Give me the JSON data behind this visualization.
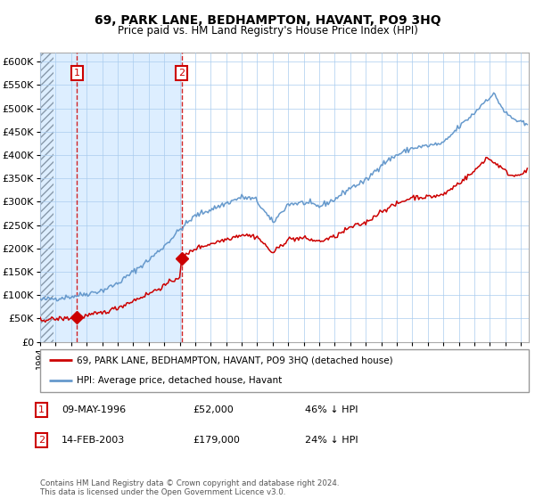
{
  "title": "69, PARK LANE, BEDHAMPTON, HAVANT, PO9 3HQ",
  "subtitle": "Price paid vs. HM Land Registry's House Price Index (HPI)",
  "sale1_date": "09-MAY-1996",
  "sale1_year": 1996.37,
  "sale1_price": 52000,
  "sale2_date": "14-FEB-2003",
  "sale2_year": 2003.12,
  "sale2_price": 179000,
  "sale1_pct": "46% ↓ HPI",
  "sale2_pct": "24% ↓ HPI",
  "legend_house": "69, PARK LANE, BEDHAMPTON, HAVANT, PO9 3HQ (detached house)",
  "legend_hpi": "HPI: Average price, detached house, Havant",
  "footer": "Contains HM Land Registry data © Crown copyright and database right 2024.\nThis data is licensed under the Open Government Licence v3.0.",
  "hpi_color": "#6699cc",
  "price_color": "#cc0000",
  "bg_shade_color": "#ddeeff",
  "grid_color": "#aaccee",
  "xlim_start": 1994.0,
  "xlim_end": 2025.5,
  "ylim_min": 0,
  "ylim_max": 620000,
  "ytick_step": 50000
}
